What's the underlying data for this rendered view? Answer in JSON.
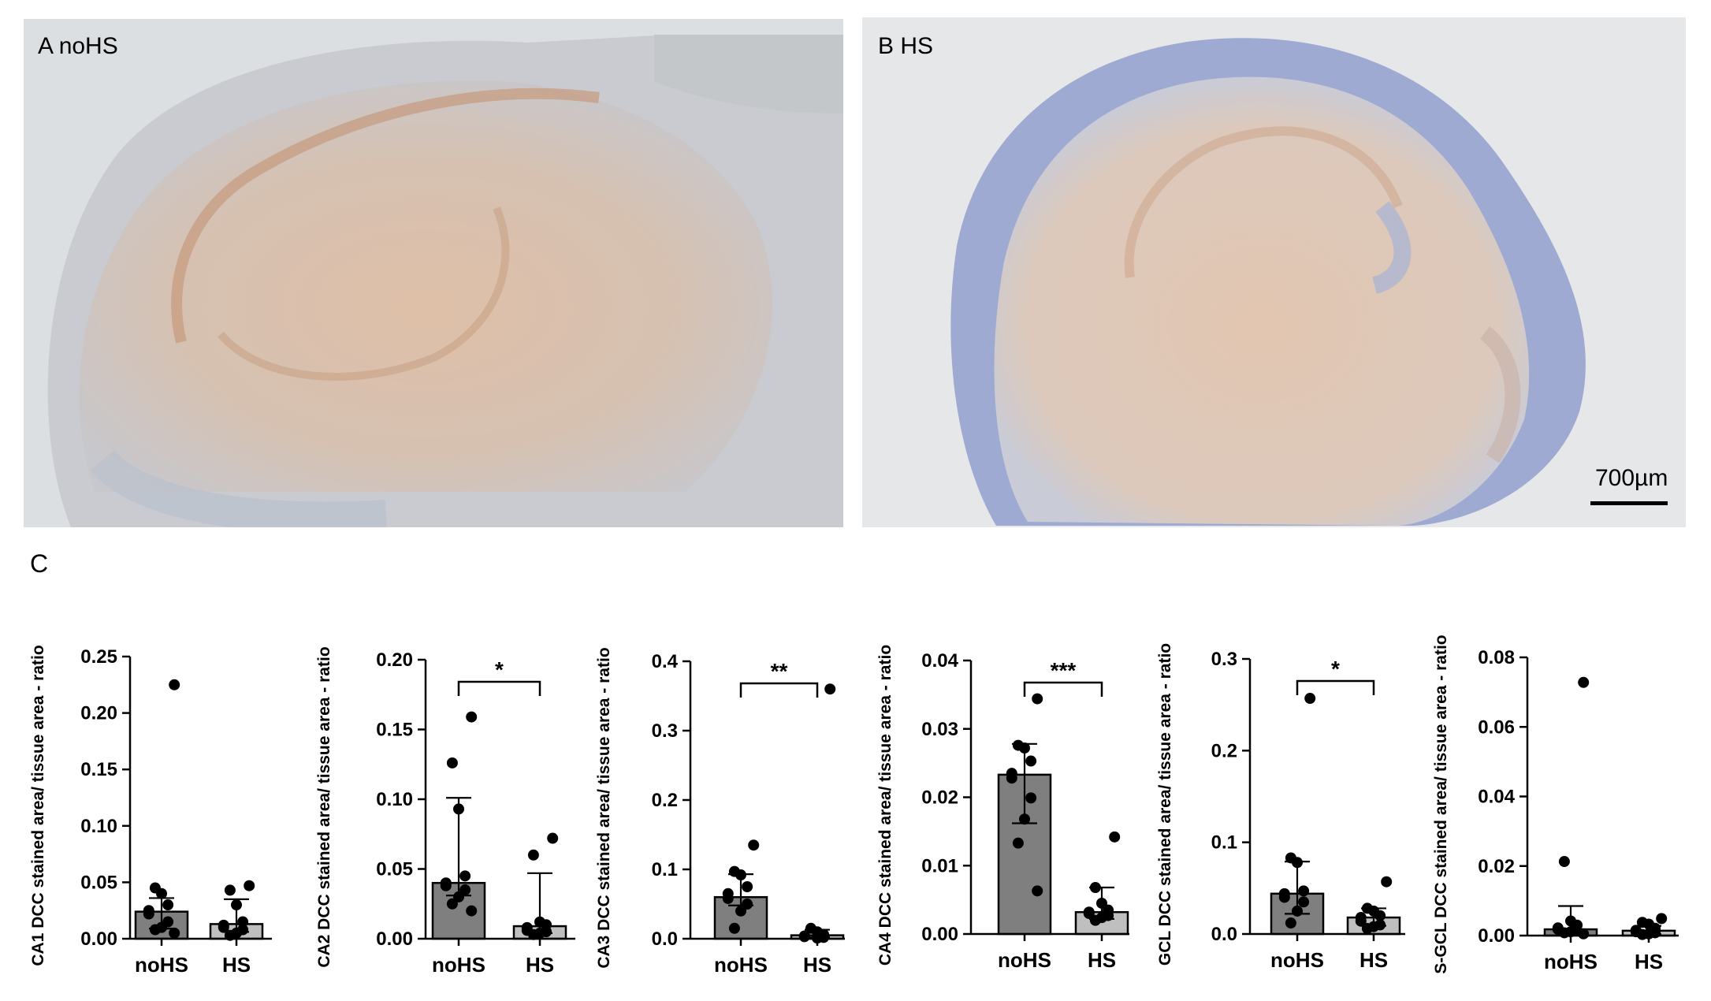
{
  "panels": {
    "a_label": "A noHS",
    "b_label": "B HS",
    "scale_bar": "700µm",
    "c_label": "C"
  },
  "chart_data": [
    {
      "type": "bar",
      "categories": [
        "noHS",
        "HS"
      ],
      "ylabel": "CA1 DCC stained area/ tissue area - ratio",
      "ylim": [
        0,
        0.25
      ],
      "yticks": [
        "0.00",
        "0.05",
        "0.10",
        "0.15",
        "0.20",
        "0.25"
      ],
      "yticks_values": [
        0,
        0.05,
        0.1,
        0.15,
        0.2,
        0.25
      ],
      "values": [
        0.024,
        0.013
      ],
      "error_upper": [
        0.036,
        0.035
      ],
      "error_lower": [
        0.009,
        0.006
      ],
      "points": [
        [
          0.225,
          0.045,
          0.04,
          0.03,
          0.025,
          0.022,
          0.015,
          0.01,
          0.008,
          0.005
        ],
        [
          0.047,
          0.043,
          0.03,
          0.015,
          0.012,
          0.01,
          0.008,
          0.005,
          0.003
        ]
      ],
      "significance": ""
    },
    {
      "type": "bar",
      "categories": [
        "noHS",
        "HS"
      ],
      "ylabel": "CA2 DCC stained area/ tissue area - ratio",
      "ylim": [
        0,
        0.2
      ],
      "yticks": [
        "0.00",
        "0.05",
        "0.10",
        "0.15",
        "0.20"
      ],
      "yticks_values": [
        0,
        0.05,
        0.1,
        0.15,
        0.2
      ],
      "values": [
        0.04,
        0.009
      ],
      "error_upper": [
        0.101,
        0.047
      ],
      "error_lower": [
        0.031,
        0.004
      ],
      "points": [
        [
          0.159,
          0.126,
          0.093,
          0.045,
          0.04,
          0.038,
          0.035,
          0.03,
          0.025,
          0.02
        ],
        [
          0.072,
          0.06,
          0.012,
          0.01,
          0.008,
          0.006,
          0.005,
          0.004,
          0.003
        ]
      ],
      "significance": "*"
    },
    {
      "type": "bar",
      "categories": [
        "noHS",
        "HS"
      ],
      "ylabel": "CA3 DCC stained area/ tissue area - ratio",
      "ylim": [
        0,
        0.4
      ],
      "yticks": [
        "0.0",
        "0.1",
        "0.2",
        "0.3",
        "0.4"
      ],
      "yticks_values": [
        0,
        0.1,
        0.2,
        0.3,
        0.4
      ],
      "values": [
        0.06,
        0.005
      ],
      "error_upper": [
        0.093,
        0.013
      ],
      "error_lower": [
        0.048,
        0.002
      ],
      "points": [
        [
          0.135,
          0.097,
          0.092,
          0.075,
          0.065,
          0.058,
          0.05,
          0.04,
          0.015
        ],
        [
          0.36,
          0.015,
          0.01,
          0.006,
          0.004,
          0.003,
          0.002,
          0.001
        ]
      ],
      "significance": "**"
    },
    {
      "type": "bar",
      "categories": [
        "noHS",
        "HS"
      ],
      "ylabel": "CA4 DCC stained area/ tissue area - ratio",
      "ylim": [
        0,
        0.04
      ],
      "yticks": [
        "0.00",
        "0.01",
        "0.02",
        "0.03",
        "0.04"
      ],
      "yticks_values": [
        0,
        0.01,
        0.02,
        0.03,
        0.04
      ],
      "values": [
        0.0233,
        0.0032
      ],
      "error_upper": [
        0.0278,
        0.0068
      ],
      "error_lower": [
        0.0162,
        0.0022
      ],
      "points": [
        [
          0.0344,
          0.0276,
          0.0272,
          0.0253,
          0.0235,
          0.0228,
          0.0199,
          0.0168,
          0.0133,
          0.0063
        ],
        [
          0.0142,
          0.0068,
          0.0045,
          0.0035,
          0.0032,
          0.003,
          0.0027,
          0.0024,
          0.002
        ]
      ],
      "significance": "***"
    },
    {
      "type": "bar",
      "categories": [
        "noHS",
        "HS"
      ],
      "ylabel": "GCL DCC stained area/ tissue area - ratio",
      "ylim": [
        0,
        0.3
      ],
      "yticks": [
        "0.0",
        "0.1",
        "0.2",
        "0.3"
      ],
      "yticks_values": [
        0,
        0.1,
        0.2,
        0.3
      ],
      "values": [
        0.044,
        0.018
      ],
      "error_upper": [
        0.079,
        0.028
      ],
      "error_lower": [
        0.022,
        0.009
      ],
      "points": [
        [
          0.257,
          0.083,
          0.078,
          0.047,
          0.044,
          0.04,
          0.035,
          0.025,
          0.012
        ],
        [
          0.057,
          0.028,
          0.025,
          0.02,
          0.018,
          0.014,
          0.01,
          0.008,
          0.006
        ]
      ],
      "significance": "*"
    },
    {
      "type": "bar",
      "categories": [
        "noHS",
        "HS"
      ],
      "ylabel": "S-GCL DCC stained area/ tissue area - ratio",
      "ylim": [
        0,
        0.08
      ],
      "yticks": [
        "0.00",
        "0.02",
        "0.04",
        "0.06",
        "0.08"
      ],
      "yticks_values": [
        0,
        0.02,
        0.04,
        0.06,
        0.08
      ],
      "values": [
        0.0018,
        0.0014
      ],
      "error_upper": [
        0.0085,
        0.0028
      ],
      "error_lower": [
        0.0004,
        0.0004
      ],
      "points": [
        [
          0.0728,
          0.0213,
          0.0042,
          0.003,
          0.0022,
          0.0018,
          0.0014,
          0.0011,
          0.0008,
          0.0005
        ],
        [
          0.0049,
          0.0038,
          0.0033,
          0.0021,
          0.0015,
          0.0011,
          0.0008,
          0.0005,
          0.0003
        ]
      ],
      "significance": ""
    }
  ]
}
